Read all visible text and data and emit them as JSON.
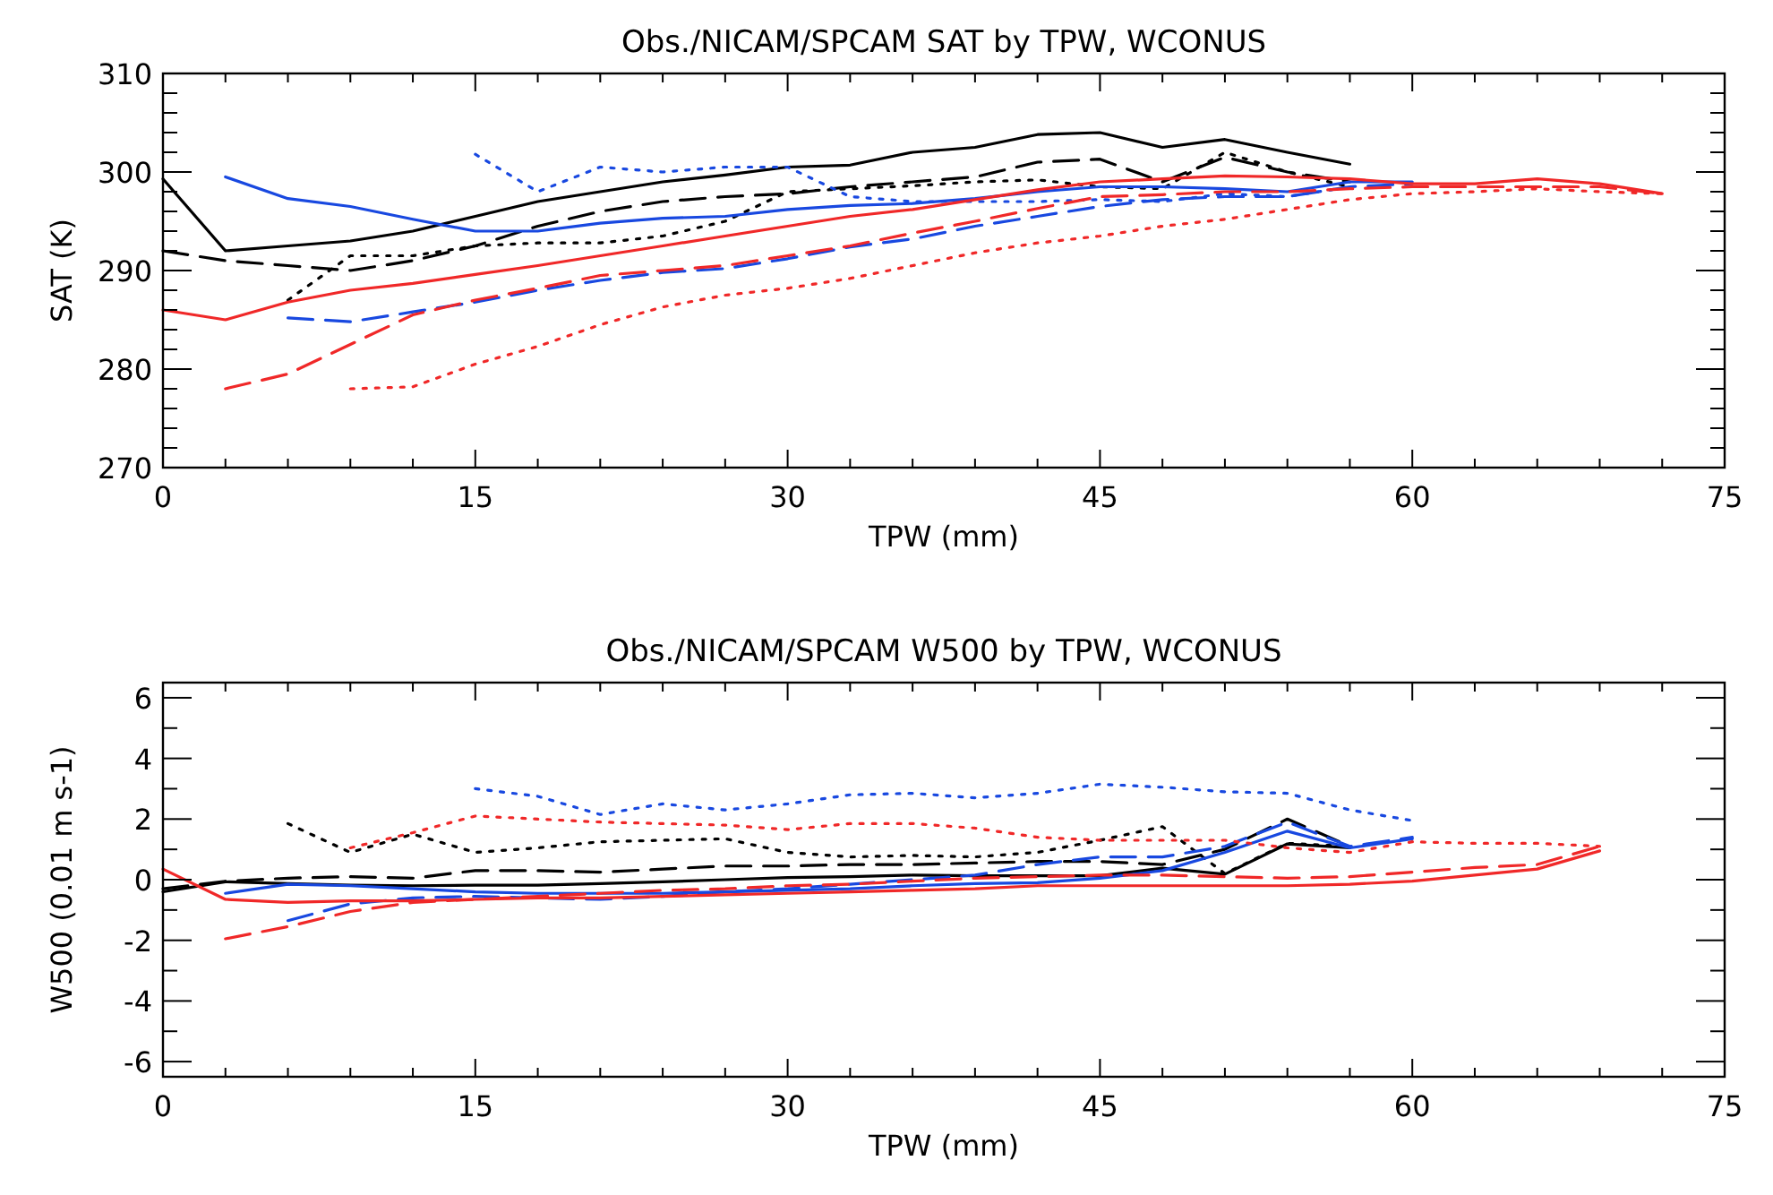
{
  "chart_data": [
    {
      "type": "line",
      "title": "Obs./NICAM/SPCAM SAT by TPW, WCONUS",
      "xlabel": "TPW (mm)",
      "ylabel": "SAT (K)",
      "grid": false,
      "xlim": [
        0,
        75
      ],
      "ylim": [
        270,
        310
      ],
      "xticks": [
        0,
        {
          "value": 3,
          "label": null
        },
        {
          "value": 6,
          "label": null
        },
        {
          "value": 9,
          "label": null
        },
        {
          "value": 12,
          "label": null
        },
        15,
        {
          "value": 18,
          "label": null
        },
        {
          "value": 21,
          "label": null
        },
        {
          "value": 24,
          "label": null
        },
        {
          "value": 27,
          "label": null
        },
        30,
        {
          "value": 33,
          "label": null
        },
        {
          "value": 36,
          "label": null
        },
        {
          "value": 39,
          "label": null
        },
        {
          "value": 42,
          "label": null
        },
        45,
        {
          "value": 48,
          "label": null
        },
        {
          "value": 51,
          "label": null
        },
        {
          "value": 54,
          "label": null
        },
        {
          "value": 57,
          "label": null
        },
        60,
        {
          "value": 63,
          "label": null
        },
        {
          "value": 66,
          "label": null
        },
        {
          "value": 69,
          "label": null
        },
        {
          "value": 72,
          "label": null
        },
        75
      ],
      "yticks": [
        270,
        {
          "value": 272,
          "label": null
        },
        {
          "value": 274,
          "label": null
        },
        {
          "value": 276,
          "label": null
        },
        {
          "value": 278,
          "label": null
        },
        280,
        {
          "value": 282,
          "label": null
        },
        {
          "value": 284,
          "label": null
        },
        {
          "value": 286,
          "label": null
        },
        {
          "value": 288,
          "label": null
        },
        290,
        {
          "value": 292,
          "label": null
        },
        {
          "value": 294,
          "label": null
        },
        {
          "value": 296,
          "label": null
        },
        {
          "value": 298,
          "label": null
        },
        300,
        {
          "value": 302,
          "label": null
        },
        {
          "value": 304,
          "label": null
        },
        {
          "value": 306,
          "label": null
        },
        {
          "value": 308,
          "label": null
        },
        310
      ],
      "series": [
        {
          "color": "#000000",
          "line_style": "solid",
          "x": [
            0,
            3,
            6,
            9,
            12,
            15,
            18,
            21,
            24,
            27,
            30,
            33,
            36,
            39,
            42,
            45,
            48,
            51,
            54,
            57
          ],
          "values": [
            299.3,
            292,
            292.5,
            293,
            294,
            295.5,
            297,
            298,
            299,
            299.7,
            300.5,
            300.7,
            302,
            302.5,
            303.8,
            304,
            302.5,
            303.3,
            302,
            300.8
          ]
        },
        {
          "color": "#000000",
          "line_style": "dashed",
          "x": [
            0,
            3,
            6,
            9,
            12,
            15,
            18,
            21,
            24,
            27,
            30,
            33,
            36,
            39,
            42,
            45,
            48,
            51,
            54,
            57
          ],
          "values": [
            292,
            291,
            290.5,
            290,
            291,
            292.5,
            294.5,
            296,
            297,
            297.5,
            297.8,
            298.5,
            299,
            299.5,
            301,
            301.3,
            299,
            301.5,
            300,
            299
          ]
        },
        {
          "color": "#000000",
          "line_style": "dotted",
          "x": [
            6,
            9,
            12,
            15,
            18,
            21,
            24,
            27,
            30,
            33,
            36,
            39,
            42,
            45,
            48,
            51,
            54,
            57
          ],
          "values": [
            287,
            291.5,
            291.5,
            292.5,
            292.8,
            292.8,
            293.5,
            295,
            298,
            298.3,
            298.6,
            299,
            299.2,
            298.5,
            298.3,
            302,
            300,
            298.5
          ]
        },
        {
          "color": "#1848e0",
          "line_style": "solid",
          "x": [
            3,
            6,
            9,
            12,
            15,
            18,
            21,
            24,
            27,
            30,
            33,
            36,
            39,
            42,
            45,
            48,
            51,
            54,
            57,
            60
          ],
          "values": [
            299.5,
            297.3,
            296.5,
            295.2,
            294,
            294,
            294.8,
            295.3,
            295.5,
            296.2,
            296.6,
            296.8,
            297.3,
            298,
            298.5,
            298.5,
            298.3,
            298,
            299,
            299
          ]
        },
        {
          "color": "#1848e0",
          "line_style": "dashed",
          "x": [
            6,
            9,
            12,
            15,
            18,
            21,
            24,
            27,
            30,
            33,
            36,
            39,
            42,
            45,
            48,
            51,
            54,
            57,
            60
          ],
          "values": [
            285.2,
            284.8,
            285.8,
            286.8,
            288,
            289,
            289.8,
            290.2,
            291.2,
            292.4,
            293.2,
            294.5,
            295.5,
            296.5,
            297.2,
            297.5,
            297.5,
            298.5,
            298.8
          ]
        },
        {
          "color": "#1848e0",
          "line_style": "dotted",
          "x": [
            15,
            18,
            21,
            24,
            27,
            30,
            33,
            36,
            39,
            42,
            45,
            48,
            51,
            54,
            57
          ],
          "values": [
            301.8,
            298,
            300.5,
            300,
            300.5,
            300.5,
            297.5,
            297,
            297,
            297,
            297.2,
            297,
            297.8,
            297.5,
            298.5
          ]
        },
        {
          "color": "#f02828",
          "line_style": "solid",
          "x": [
            0,
            3,
            6,
            9,
            12,
            15,
            18,
            21,
            24,
            27,
            30,
            33,
            36,
            39,
            42,
            45,
            48,
            51,
            54,
            57,
            60,
            63,
            66,
            69,
            72
          ],
          "values": [
            286,
            285,
            286.8,
            288,
            288.7,
            289.6,
            290.5,
            291.5,
            292.5,
            293.5,
            294.5,
            295.5,
            296.2,
            297.2,
            298.2,
            299,
            299.3,
            299.6,
            299.5,
            299.3,
            298.8,
            298.8,
            299.3,
            298.8,
            297.8
          ]
        },
        {
          "color": "#f02828",
          "line_style": "dashed",
          "x": [
            3,
            6,
            9,
            12,
            15,
            18,
            21,
            24,
            27,
            30,
            33,
            36,
            39,
            42,
            45,
            48,
            51,
            54,
            57,
            60,
            63,
            66,
            69,
            72
          ],
          "values": [
            278,
            279.5,
            282.5,
            285.5,
            287,
            288.2,
            289.5,
            290,
            290.5,
            291.5,
            292.5,
            293.8,
            295,
            296.3,
            297.5,
            297.7,
            298,
            298,
            298.3,
            298.5,
            298.5,
            298.5,
            298.5,
            297.8
          ]
        },
        {
          "color": "#f02828",
          "line_style": "dotted",
          "x": [
            9,
            12,
            15,
            18,
            21,
            24,
            27,
            30,
            33,
            36,
            39,
            42,
            45,
            48,
            51,
            54,
            57,
            60,
            63,
            66,
            69,
            72
          ],
          "values": [
            278,
            278.2,
            280.5,
            282.3,
            284.5,
            286.3,
            287.5,
            288.2,
            289.2,
            290.5,
            291.8,
            292.8,
            293.5,
            294.5,
            295.2,
            296.2,
            297.2,
            297.8,
            298,
            298.3,
            298,
            297.8
          ]
        }
      ]
    },
    {
      "type": "line",
      "title": "Obs./NICAM/SPCAM W500 by TPW, WCONUS",
      "xlabel": "TPW (mm)",
      "ylabel": "W500 (0.01 m s-1)",
      "grid": false,
      "xlim": [
        0,
        75
      ],
      "ylim": [
        -6.5,
        6.5
      ],
      "xticks": [
        0,
        {
          "value": 3,
          "label": null
        },
        {
          "value": 6,
          "label": null
        },
        {
          "value": 9,
          "label": null
        },
        {
          "value": 12,
          "label": null
        },
        15,
        {
          "value": 18,
          "label": null
        },
        {
          "value": 21,
          "label": null
        },
        {
          "value": 24,
          "label": null
        },
        {
          "value": 27,
          "label": null
        },
        30,
        {
          "value": 33,
          "label": null
        },
        {
          "value": 36,
          "label": null
        },
        {
          "value": 39,
          "label": null
        },
        {
          "value": 42,
          "label": null
        },
        45,
        {
          "value": 48,
          "label": null
        },
        {
          "value": 51,
          "label": null
        },
        {
          "value": 54,
          "label": null
        },
        {
          "value": 57,
          "label": null
        },
        60,
        {
          "value": 63,
          "label": null
        },
        {
          "value": 66,
          "label": null
        },
        {
          "value": 69,
          "label": null
        },
        {
          "value": 72,
          "label": null
        },
        75
      ],
      "yticks": [
        {
          "value": -6,
          "label": "-6"
        },
        {
          "value": -5,
          "label": null
        },
        {
          "value": -4,
          "label": "-4"
        },
        {
          "value": -3,
          "label": null
        },
        {
          "value": -2,
          "label": "-2"
        },
        {
          "value": -1,
          "label": null
        },
        0,
        {
          "value": 1,
          "label": null
        },
        2,
        {
          "value": 3,
          "label": null
        },
        4,
        {
          "value": 5,
          "label": null
        },
        6
      ],
      "series": [
        {
          "color": "#000000",
          "line_style": "solid",
          "x": [
            0,
            3,
            6,
            9,
            12,
            15,
            18,
            21,
            24,
            27,
            30,
            33,
            36,
            39,
            42,
            45,
            48,
            51,
            54,
            57
          ],
          "values": [
            -0.4,
            -0.07,
            -0.13,
            -0.18,
            -0.2,
            -0.18,
            -0.18,
            -0.13,
            -0.07,
            0,
            0.07,
            0.1,
            0.15,
            0.13,
            0.13,
            0.13,
            0.38,
            0.18,
            1.18,
            1.05
          ]
        },
        {
          "color": "#000000",
          "line_style": "dashed",
          "x": [
            0,
            3,
            6,
            9,
            12,
            15,
            18,
            21,
            24,
            27,
            30,
            33,
            36,
            39,
            42,
            45,
            48,
            51,
            54,
            57
          ],
          "values": [
            -0.3,
            -0.05,
            0.05,
            0.1,
            0.05,
            0.3,
            0.3,
            0.25,
            0.35,
            0.45,
            0.45,
            0.5,
            0.5,
            0.55,
            0.6,
            0.6,
            0.5,
            1,
            2,
            1.1
          ]
        },
        {
          "color": "#000000",
          "line_style": "dotted",
          "x": [
            6,
            9,
            12,
            15,
            18,
            21,
            24,
            27,
            30,
            33,
            36,
            39,
            42,
            45,
            48,
            51,
            54,
            57
          ],
          "values": [
            1.85,
            0.9,
            1.5,
            0.9,
            1.05,
            1.25,
            1.3,
            1.35,
            0.9,
            0.75,
            0.8,
            0.75,
            0.9,
            1.3,
            1.75,
            0.2,
            1.2,
            1.1
          ]
        },
        {
          "color": "#1848e0",
          "line_style": "solid",
          "x": [
            3,
            6,
            9,
            12,
            15,
            18,
            21,
            24,
            27,
            30,
            33,
            36,
            39,
            42,
            45,
            48,
            51,
            54,
            57,
            60
          ],
          "values": [
            -0.45,
            -0.15,
            -0.2,
            -0.3,
            -0.4,
            -0.45,
            -0.45,
            -0.45,
            -0.4,
            -0.35,
            -0.3,
            -0.2,
            -0.13,
            -0.1,
            0.05,
            0.3,
            0.9,
            1.6,
            1.05,
            1.35
          ]
        },
        {
          "color": "#1848e0",
          "line_style": "dashed",
          "x": [
            6,
            9,
            12,
            15,
            18,
            21,
            24,
            27,
            30,
            33,
            36,
            39,
            42,
            45,
            48,
            51,
            54,
            57,
            60
          ],
          "values": [
            -1.35,
            -0.8,
            -0.6,
            -0.55,
            -0.6,
            -0.65,
            -0.55,
            -0.4,
            -0.3,
            -0.15,
            0,
            0.15,
            0.5,
            0.75,
            0.75,
            1.1,
            1.9,
            1.1,
            1.4
          ]
        },
        {
          "color": "#1848e0",
          "line_style": "dotted",
          "x": [
            15,
            18,
            21,
            24,
            27,
            30,
            33,
            36,
            39,
            42,
            45,
            48,
            51,
            54,
            57,
            60
          ],
          "values": [
            3,
            2.75,
            2.15,
            2.5,
            2.3,
            2.5,
            2.8,
            2.85,
            2.7,
            2.85,
            3.15,
            3.05,
            2.9,
            2.85,
            2.3,
            1.95
          ]
        },
        {
          "color": "#f02828",
          "line_style": "solid",
          "x": [
            0,
            3,
            6,
            9,
            12,
            15,
            18,
            21,
            24,
            27,
            30,
            33,
            36,
            39,
            42,
            45,
            48,
            51,
            54,
            57,
            60,
            63,
            66,
            69
          ],
          "values": [
            0.35,
            -0.65,
            -0.75,
            -0.7,
            -0.7,
            -0.65,
            -0.6,
            -0.6,
            -0.55,
            -0.5,
            -0.45,
            -0.4,
            -0.35,
            -0.3,
            -0.2,
            -0.2,
            -0.2,
            -0.2,
            -0.2,
            -0.15,
            -0.05,
            0.15,
            0.35,
            0.95
          ]
        },
        {
          "color": "#f02828",
          "line_style": "dashed",
          "x": [
            3,
            6,
            9,
            12,
            15,
            18,
            21,
            24,
            27,
            30,
            33,
            36,
            39,
            42,
            45,
            48,
            51,
            54,
            57,
            60,
            63,
            66,
            69
          ],
          "values": [
            -1.95,
            -1.55,
            -1.05,
            -0.75,
            -0.65,
            -0.55,
            -0.45,
            -0.35,
            -0.3,
            -0.2,
            -0.15,
            -0.05,
            0.05,
            0.1,
            0.15,
            0.15,
            0.1,
            0.05,
            0.1,
            0.25,
            0.4,
            0.5,
            1.1
          ]
        },
        {
          "color": "#f02828",
          "line_style": "dotted",
          "x": [
            9,
            12,
            15,
            18,
            21,
            24,
            27,
            30,
            33,
            36,
            39,
            42,
            45,
            48,
            51,
            54,
            57,
            60,
            63,
            66,
            69
          ],
          "values": [
            1.05,
            1.55,
            2.1,
            2,
            1.9,
            1.85,
            1.8,
            1.65,
            1.85,
            1.85,
            1.7,
            1.4,
            1.3,
            1.3,
            1.3,
            1.05,
            0.9,
            1.25,
            1.2,
            1.2,
            1.1
          ]
        }
      ]
    }
  ]
}
